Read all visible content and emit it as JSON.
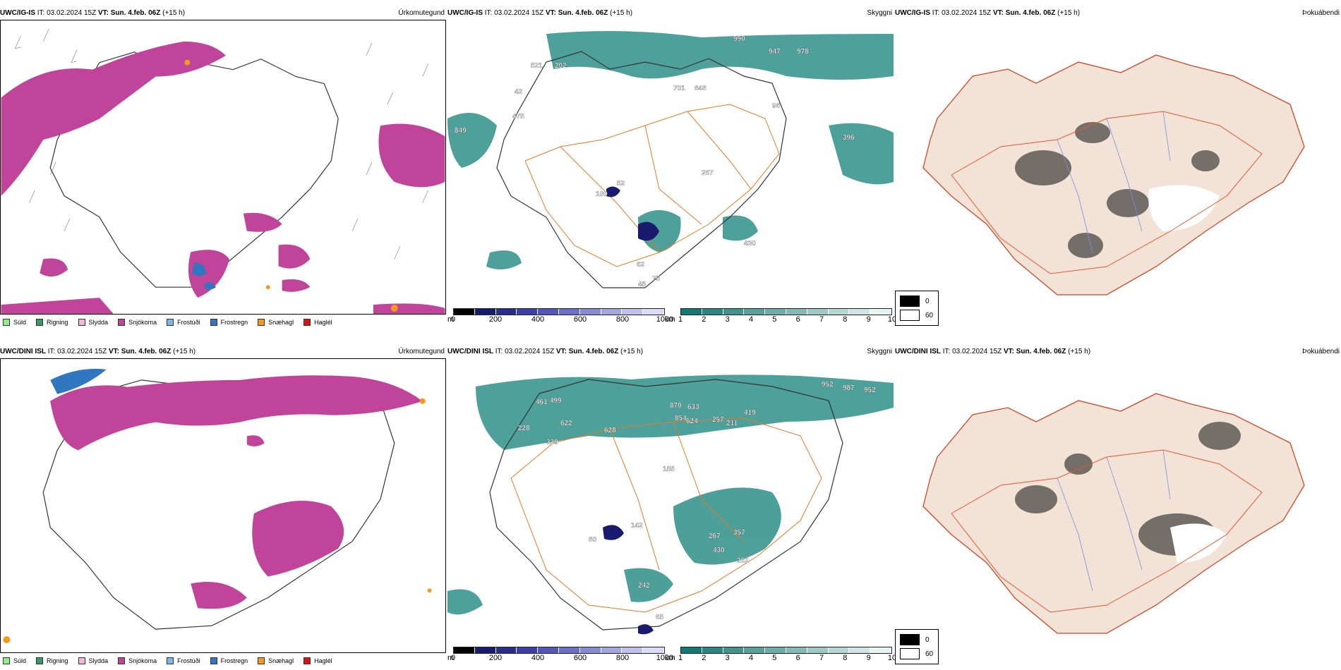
{
  "rows": [
    {
      "model": "UWC/IG-IS",
      "precip": {
        "it_label": "IT:",
        "it_value": "03.02.2024 15Z",
        "vt_label": "VT:",
        "vt_value": "Sun. 4.feb. 06Z",
        "lead": "(+15 h)",
        "param": "Úrkomutegund"
      },
      "clouds": {
        "it_label": "IT:",
        "it_value": "03.02.2024 15Z",
        "vt_label": "VT:",
        "vt_value": "Sun. 4.feb. 06Z",
        "lead": "(+15 h)",
        "param": "Skyggni",
        "labels": [
          "990",
          "947",
          "978",
          "521",
          "202",
          "42",
          "475",
          "701",
          "848",
          "849",
          "96",
          "396",
          "267",
          "430",
          "100",
          "52",
          "62",
          "75",
          "45"
        ]
      },
      "fog": {
        "it_label": "IT:",
        "it_value": "03.02.2024 15Z",
        "vt_label": "VT:",
        "vt_value": "Sun. 4.feb. 06Z",
        "lead": "(+15 h)",
        "param": "Þokuábendi"
      }
    },
    {
      "model": "UWC/DINI ISL",
      "precip": {
        "it_label": "IT:",
        "it_value": "03.02.2024 15Z",
        "vt_label": "VT:",
        "vt_value": "Sun. 4.feb. 06Z",
        "lead": "(+15 h)",
        "param": "Úrkomutegund"
      },
      "clouds": {
        "it_label": "IT:",
        "it_value": "03.02.2024 15Z",
        "vt_label": "VT:",
        "vt_value": "Sun. 4.feb. 06Z",
        "lead": "(+15 h)",
        "param": "Skyggni",
        "labels": [
          "952",
          "987",
          "952",
          "461",
          "499",
          "228",
          "622",
          "339",
          "870",
          "633",
          "854",
          "624",
          "257",
          "211",
          "419",
          "628",
          "155",
          "142",
          "80",
          "267",
          "357",
          "430",
          "262",
          "242",
          "65"
        ]
      },
      "fog": {
        "it_label": "IT:",
        "it_value": "03.02.2024 15Z",
        "vt_label": "VT:",
        "vt_value": "Sun. 4.feb. 06Z",
        "lead": "(+15 h)",
        "param": "Þokuábendi"
      }
    }
  ],
  "precip_legend": [
    {
      "label": "Súld",
      "color": "#90ee90"
    },
    {
      "label": "Rigning",
      "color": "#3c9a6a"
    },
    {
      "label": "Slydda",
      "color": "#f4b6d6"
    },
    {
      "label": "Snjókoma",
      "color": "#c0459a"
    },
    {
      "label": "Frostúði",
      "color": "#7fb6ea"
    },
    {
      "label": "Frostregn",
      "color": "#2f78c0"
    },
    {
      "label": "Snæhagl",
      "color": "#f29a1d"
    },
    {
      "label": "Haglél",
      "color": "#e01010"
    }
  ],
  "ceiling_scale": {
    "unit": "m",
    "ticks": [
      "0",
      "200",
      "400",
      "600",
      "800",
      "1000"
    ],
    "colors": [
      "#000000",
      "#1a1a6e",
      "#2b2b8c",
      "#3e3ea6",
      "#5656b8",
      "#6e6ec6",
      "#8a8ad2",
      "#a6a6de",
      "#c0c0ea",
      "#dadaf4"
    ]
  },
  "visibility_scale": {
    "unit": "km",
    "ticks": [
      "1",
      "2",
      "3",
      "4",
      "5",
      "6",
      "7",
      "8",
      "9",
      "10"
    ],
    "colors": [
      "#137a72",
      "#2d8780",
      "#43938c",
      "#5aa09a",
      "#70aca7",
      "#88bab5",
      "#a0c8c4",
      "#b8d6d3",
      "#d0e4e2",
      "#e8f2f1"
    ]
  },
  "fog_legend": {
    "high": "0",
    "low": "60"
  },
  "colors": {
    "snow": "#c0459a",
    "land_fog": "#f2e3d6",
    "roads": "#e07a28",
    "teal": "#2f8f88"
  }
}
